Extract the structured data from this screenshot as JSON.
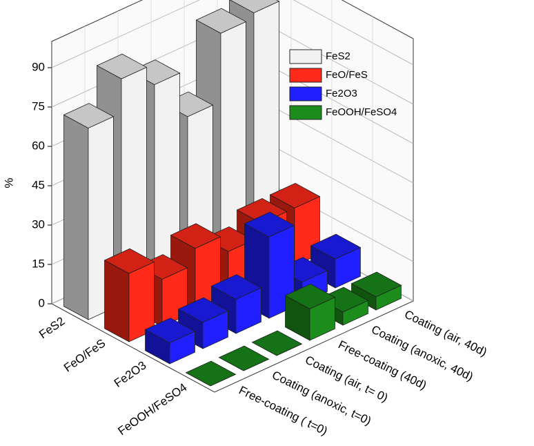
{
  "chart_data": {
    "type": "bar3d",
    "ylabel": "%",
    "categories": [
      "Free-coating ( t=0)",
      "Coating (anoxic, t=0)",
      "Coating (air, t= 0)",
      "Free-coating (40d)",
      "Coating (anoxic, 40d)",
      "Coating (air, 40d)"
    ],
    "series": [
      {
        "name": "FeS2",
        "color": "#f2f2f2",
        "values": [
          73,
          86,
          78,
          60,
          86,
          88
        ]
      },
      {
        "name": "FeO/FeS",
        "color": "#ff2a1a",
        "values": [
          26,
          18,
          24,
          17,
          22,
          22
        ]
      },
      {
        "name": "Fe2O3",
        "color": "#1f1fff",
        "values": [
          8,
          10,
          13,
          31,
          8,
          11
        ]
      },
      {
        "name": "FeOOH/FeSO4",
        "color": "#1c8c1c",
        "values": [
          0,
          0,
          0,
          12,
          5,
          5
        ]
      }
    ],
    "ylim": [
      0,
      100
    ],
    "yticks": [
      0,
      15,
      30,
      45,
      60,
      75,
      90
    ],
    "grid": true
  }
}
